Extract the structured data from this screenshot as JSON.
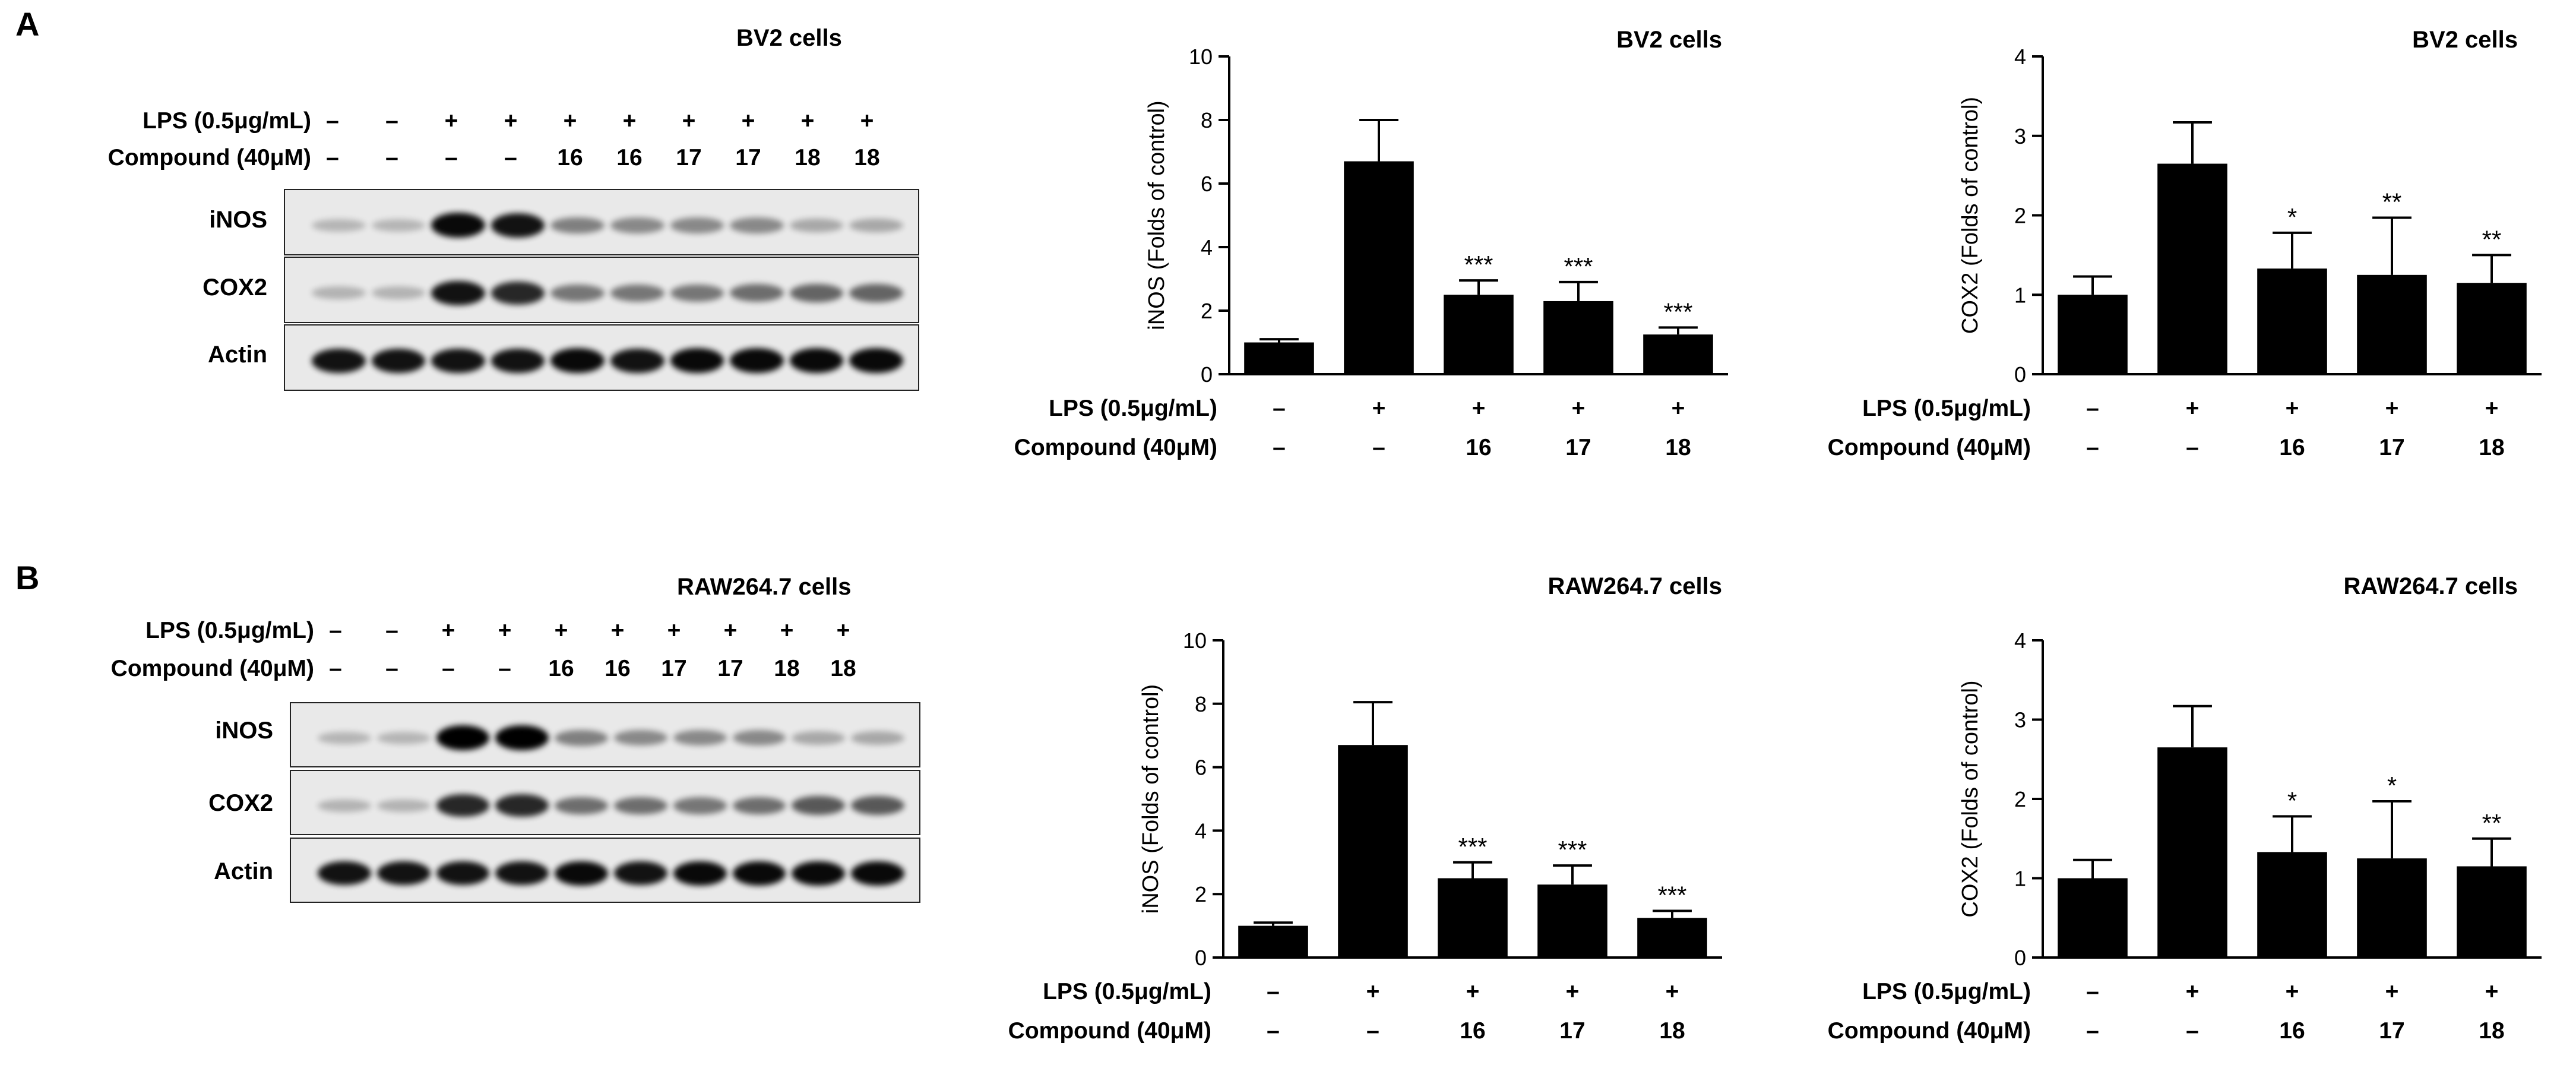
{
  "panel_a": {
    "letter": "A",
    "blot": {
      "title": "BV2 cells",
      "rows": [
        {
          "label": "LPS (0.5μg/mL)",
          "cells": [
            "–",
            "–",
            "+",
            "+",
            "+",
            "+",
            "+",
            "+",
            "+",
            "+"
          ]
        },
        {
          "label": "Compound (40μM)",
          "cells": [
            "–",
            "–",
            "–",
            "–",
            "16",
            "16",
            "17",
            "17",
            "18",
            "18"
          ]
        }
      ],
      "strips": [
        {
          "label": "iNOS",
          "intensity": [
            0.08,
            0.08,
            0.95,
            0.9,
            0.35,
            0.3,
            0.3,
            0.3,
            0.15,
            0.15
          ]
        },
        {
          "label": "COX2",
          "intensity": [
            0.1,
            0.1,
            0.9,
            0.8,
            0.4,
            0.4,
            0.4,
            0.45,
            0.5,
            0.5
          ]
        },
        {
          "label": "Actin",
          "intensity": [
            0.9,
            0.9,
            0.9,
            0.9,
            0.95,
            0.9,
            0.95,
            0.95,
            0.95,
            0.95
          ]
        }
      ]
    }
  },
  "panel_b": {
    "letter": "B",
    "blot": {
      "title": "RAW264.7 cells",
      "rows": [
        {
          "label": "LPS (0.5μg/mL)",
          "cells": [
            "–",
            "–",
            "+",
            "+",
            "+",
            "+",
            "+",
            "+",
            "+",
            "+"
          ]
        },
        {
          "label": "Compound (40μM)",
          "cells": [
            "–",
            "–",
            "–",
            "–",
            "16",
            "16",
            "17",
            "17",
            "18",
            "18"
          ]
        }
      ],
      "strips": [
        {
          "label": "iNOS",
          "intensity": [
            0.08,
            0.08,
            1.0,
            1.0,
            0.35,
            0.3,
            0.3,
            0.3,
            0.15,
            0.15
          ]
        },
        {
          "label": "COX2",
          "intensity": [
            0.1,
            0.1,
            0.8,
            0.8,
            0.45,
            0.45,
            0.4,
            0.45,
            0.55,
            0.55
          ]
        },
        {
          "label": "Actin",
          "intensity": [
            0.9,
            0.9,
            0.9,
            0.9,
            0.95,
            0.9,
            0.95,
            0.95,
            0.95,
            0.95
          ]
        }
      ]
    }
  },
  "chart_data": [
    {
      "type": "bar",
      "title": "BV2 cells",
      "ylabel": "iNOS (Folds of control)",
      "xlabel": "",
      "ylim": [
        0,
        10
      ],
      "yticks": [
        0,
        2,
        4,
        6,
        8,
        10
      ],
      "grid": false,
      "treatments": [
        {
          "label": "LPS (0.5μg/mL)",
          "cells": [
            "–",
            "+",
            "+",
            "+",
            "+"
          ]
        },
        {
          "label": "Compound (40μM)",
          "cells": [
            "–",
            "–",
            "16",
            "17",
            "18"
          ]
        }
      ],
      "values": [
        1.0,
        6.7,
        2.5,
        2.3,
        1.25
      ],
      "errors": [
        0.1,
        1.3,
        0.45,
        0.6,
        0.22
      ],
      "significance": [
        "",
        "",
        "***",
        "***",
        "***"
      ]
    },
    {
      "type": "bar",
      "title": "BV2 cells",
      "ylabel": "COX2  (Folds of control)",
      "xlabel": "",
      "ylim": [
        0,
        4
      ],
      "yticks": [
        0,
        1,
        2,
        3,
        4
      ],
      "grid": false,
      "treatments": [
        {
          "label": "LPS (0.5μg/mL)",
          "cells": [
            "–",
            "+",
            "+",
            "+",
            "+"
          ]
        },
        {
          "label": "Compound (40μM)",
          "cells": [
            "–",
            "–",
            "16",
            "17",
            "18"
          ]
        }
      ],
      "values": [
        1.0,
        2.65,
        1.33,
        1.25,
        1.15
      ],
      "errors": [
        0.23,
        0.52,
        0.45,
        0.72,
        0.35
      ],
      "significance": [
        "",
        "",
        "*",
        "**",
        "**"
      ]
    },
    {
      "type": "bar",
      "title": "RAW264.7 cells",
      "ylabel": "iNOS (Folds of control)",
      "xlabel": "",
      "ylim": [
        0,
        10
      ],
      "yticks": [
        0,
        2,
        4,
        6,
        8,
        10
      ],
      "grid": false,
      "treatments": [
        {
          "label": "LPS (0.5μg/mL)",
          "cells": [
            "–",
            "+",
            "+",
            "+",
            "+"
          ]
        },
        {
          "label": "Compound (40μM)",
          "cells": [
            "–",
            "–",
            "16",
            "17",
            "18"
          ]
        }
      ],
      "values": [
        1.0,
        6.7,
        2.5,
        2.3,
        1.25
      ],
      "errors": [
        0.1,
        1.35,
        0.5,
        0.6,
        0.22
      ],
      "significance": [
        "",
        "",
        "***",
        "***",
        "***"
      ]
    },
    {
      "type": "bar",
      "title": "RAW264.7 cells",
      "ylabel": "COX2  (Folds of control)",
      "xlabel": "",
      "ylim": [
        0,
        4
      ],
      "yticks": [
        0,
        1,
        2,
        3,
        4
      ],
      "grid": false,
      "treatments": [
        {
          "label": "LPS (0.5μg/mL)",
          "cells": [
            "–",
            "+",
            "+",
            "+",
            "+"
          ]
        },
        {
          "label": "Compound (40μM)",
          "cells": [
            "–",
            "–",
            "16",
            "17",
            "18"
          ]
        }
      ],
      "values": [
        1.0,
        2.65,
        1.33,
        1.25,
        1.15
      ],
      "errors": [
        0.23,
        0.52,
        0.45,
        0.72,
        0.35
      ],
      "significance": [
        "",
        "",
        "*",
        "*",
        "**"
      ]
    }
  ]
}
